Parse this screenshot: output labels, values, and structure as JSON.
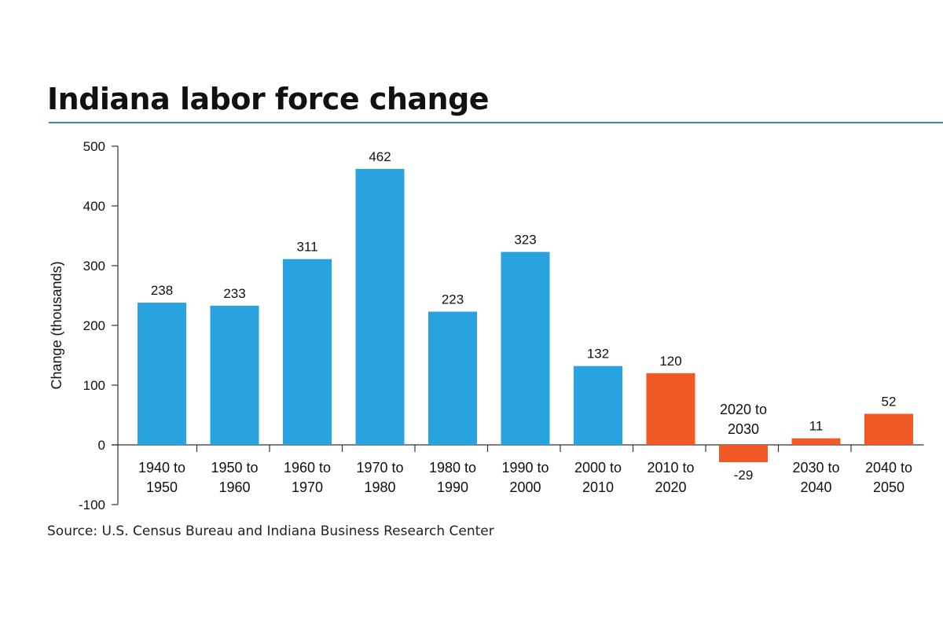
{
  "title": "Indiana labor force change",
  "source": "Source: U.S. Census Bureau and Indiana Business Research Center",
  "colors": {
    "historical": "#29a3df",
    "projected": "#f15a24",
    "rule": "#2a9d8f"
  },
  "chart_data": {
    "type": "bar",
    "title": "Indiana labor force change",
    "ylabel": "Change (thousands)",
    "xlabel": "",
    "ylim": [
      -100,
      500
    ],
    "yticks": [
      -100,
      0,
      100,
      200,
      300,
      400,
      500
    ],
    "grid": false,
    "categories": [
      [
        "1940 to",
        "1950"
      ],
      [
        "1950 to",
        "1960"
      ],
      [
        "1960 to",
        "1970"
      ],
      [
        "1970 to",
        "1980"
      ],
      [
        "1980 to",
        "1990"
      ],
      [
        "1990 to",
        "2000"
      ],
      [
        "2000 to",
        "2010"
      ],
      [
        "2010 to",
        "2020"
      ],
      [
        "2020 to",
        "2030"
      ],
      [
        "2030 to",
        "2040"
      ],
      [
        "2040 to",
        "2050"
      ]
    ],
    "values": [
      238,
      233,
      311,
      462,
      223,
      323,
      132,
      120,
      -29,
      11,
      52
    ],
    "data_labels": [
      "238",
      "233",
      "311",
      "462",
      "223",
      "323",
      "132",
      "120",
      "-29",
      "11",
      "52"
    ],
    "projected": [
      false,
      false,
      false,
      false,
      false,
      false,
      false,
      true,
      true,
      true,
      true
    ]
  }
}
